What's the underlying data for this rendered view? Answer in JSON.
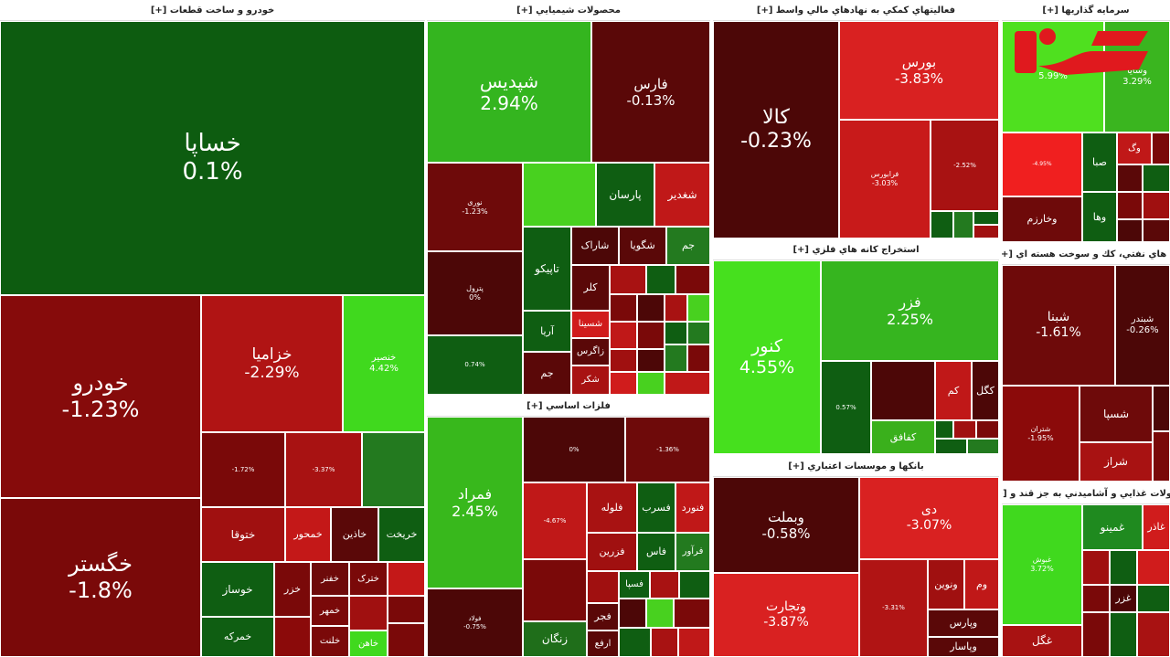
{
  "sectors": [
    {
      "title": "خودرو و ساخت قطعات [+]",
      "tiles": [
        {
          "label": "خساپا",
          "change": "0.1%",
          "color": "#0d5c10"
        },
        {
          "label": "خودرو",
          "change": "-1.23%",
          "color": "#860b0b"
        },
        {
          "label": "خگستر",
          "change": "-1.8%",
          "color": "#7a0909"
        },
        {
          "label": "خزامیا",
          "change": "-2.29%",
          "color": "#b01414"
        },
        {
          "label": "خنصیر",
          "change": "4.42%",
          "color": "#40d91e"
        },
        {
          "change": "-1.72%",
          "color": "#7a0909"
        },
        {
          "change": "-3.37%",
          "color": "#a81212"
        },
        {
          "label": "ختوقا",
          "color": "#a01010"
        },
        {
          "label": "خمحور",
          "color": "#c41818"
        },
        {
          "label": "خاذین",
          "color": "#5a0808"
        },
        {
          "label": "خریخت",
          "color": "#0f5e12"
        },
        {
          "label": "خوساز",
          "color": "#0f5e12"
        },
        {
          "label": "خزر",
          "color": "#7a0909"
        },
        {
          "label": "خفنر",
          "color": "#6e0a0a"
        },
        {
          "label": "خترک",
          "color": "#7a0909"
        },
        {
          "label": "خمهر",
          "color": "#7a0909"
        },
        {
          "label": "خمرکه",
          "color": "#0f5e12"
        },
        {
          "label": "خلنت",
          "color": "#7a0909"
        },
        {
          "label": "خاهن",
          "color": "#40d91e"
        }
      ]
    },
    {
      "title": "محصولات شيميايي [+]",
      "tiles": [
        {
          "label": "شپدیس",
          "change": "2.94%",
          "color": "#34b51f"
        },
        {
          "label": "فارس",
          "change": "-0.13%",
          "color": "#5a0808"
        },
        {
          "label": "نوری",
          "change": "-1.23%",
          "color": "#6e0a0a"
        },
        {
          "label": "پترول",
          "change": "0%",
          "color": "#4c0707"
        },
        {
          "change": "0.74%",
          "color": "#0f5e12"
        },
        {
          "label": "پارسان",
          "color": "#0f5e12"
        },
        {
          "label": "شغدیر",
          "color": "#c01818"
        },
        {
          "label": "تاپیکو",
          "color": "#0f5e12"
        },
        {
          "label": "شاراک",
          "color": "#4c0707"
        },
        {
          "label": "شگویا",
          "color": "#5a0808"
        },
        {
          "label": "جم",
          "color": "#237a1f"
        },
        {
          "label": "کلر",
          "color": "#5a0808"
        },
        {
          "label": "آریا",
          "color": "#0f5e12"
        },
        {
          "label": "جم",
          "color": "#5a0808"
        },
        {
          "label": "شسینا",
          "color": "#d01c1c"
        },
        {
          "label": "زاگرس",
          "color": "#5a0808"
        },
        {
          "label": "شکر",
          "color": "#a81212"
        }
      ]
    },
    {
      "title": "فلزات اساسي [+]",
      "tiles": [
        {
          "label": "فمراد",
          "change": "2.45%",
          "color": "#38b81c"
        },
        {
          "label": "فولاد",
          "change": "-0.75%",
          "color": "#4c0707"
        },
        {
          "change": "0%",
          "color": "#4c0707"
        },
        {
          "change": "-1.36%",
          "color": "#6e0a0a"
        },
        {
          "change": "-4.67%",
          "color": "#c01818"
        },
        {
          "label": "فلوله",
          "color": "#a81212"
        },
        {
          "label": "فسرب",
          "color": "#0f5e12"
        },
        {
          "label": "فنورد",
          "color": "#c01818"
        },
        {
          "label": "فزرین",
          "color": "#a01010"
        },
        {
          "label": "فاس",
          "color": "#0f5e12"
        },
        {
          "label": "فرآور",
          "color": "#237a1f"
        },
        {
          "label": "زنگان",
          "color": "#1f6e1a"
        },
        {
          "label": "فسپا",
          "color": "#0f5e12"
        },
        {
          "label": "فجر",
          "color": "#5a0808"
        },
        {
          "label": "ارفع",
          "color": "#5a0808"
        }
      ]
    },
    {
      "title": "فعاليتهاي كمكي به نهادهاي مالي واسط [+]",
      "tiles": [
        {
          "label": "کالا",
          "change": "-0.23%",
          "color": "#4c0707"
        },
        {
          "label": "بورس",
          "change": "-3.83%",
          "color": "#d92121"
        },
        {
          "label": "فرابورس",
          "change": "-3.03%",
          "color": "#c81a1a"
        },
        {
          "change": "-2.52%",
          "color": "#a81212"
        }
      ]
    },
    {
      "title": "استخراج كانه هاي فلزي [+]",
      "tiles": [
        {
          "label": "کنور",
          "change": "4.55%",
          "color": "#46e01e"
        },
        {
          "label": "فزر",
          "change": "2.25%",
          "color": "#36b51f"
        },
        {
          "change": "0.57%",
          "color": "#0f5e12"
        },
        {
          "label": "کم",
          "color": "#c01818"
        },
        {
          "label": "کگل",
          "color": "#4c0707"
        },
        {
          "label": "کفافق",
          "color": "#3ab01c"
        }
      ]
    },
    {
      "title": "بانكها و موسسات اعتباري [+]",
      "tiles": [
        {
          "label": "وبملت",
          "change": "-0.58%",
          "color": "#4c0707"
        },
        {
          "label": "دی",
          "change": "-3.07%",
          "color": "#d92121"
        },
        {
          "label": "وتجارت",
          "change": "-3.87%",
          "color": "#d92121"
        },
        {
          "change": "-3.31%",
          "color": "#b01414"
        },
        {
          "label": "ونوین",
          "color": "#a01010"
        },
        {
          "label": "وم",
          "color": "#c01818"
        },
        {
          "label": "وپارس",
          "color": "#5a0808"
        },
        {
          "label": "وپاسار",
          "color": "#5a0808"
        }
      ]
    },
    {
      "title": "سرمايه گذاريها [+]",
      "tiles": [
        {
          "change": "5.99%",
          "color": "#4fe01f"
        },
        {
          "label": "وسايا",
          "change": "3.29%",
          "color": "#3ab51f"
        },
        {
          "change": "-4.95%",
          "color": "#f01f1f"
        },
        {
          "label": "صبا",
          "color": "#0f5e12"
        },
        {
          "label": "وگ",
          "color": "#c01818"
        },
        {
          "label": "وخارزم",
          "color": "#6e0a0a"
        },
        {
          "label": "وها",
          "color": "#0f5e12"
        }
      ]
    },
    {
      "title": "ه هاي نفتي، كك و سوخت هسته اي [+]",
      "tiles": [
        {
          "label": "شبنا",
          "change": "-1.61%",
          "color": "#6e0a0a"
        },
        {
          "label": "شبندر",
          "change": "-0.26%",
          "color": "#4c0707"
        },
        {
          "label": "شتران",
          "change": "-1.95%",
          "color": "#8b0a0a"
        },
        {
          "label": "شسپا",
          "color": "#6e0a0a"
        },
        {
          "label": "شراز",
          "color": "#a81212"
        }
      ]
    },
    {
      "title": "صولات غذايي و آشاميدني به جز قند و [+]",
      "tiles": [
        {
          "label": "غبوش",
          "change": "3.72%",
          "color": "#40d91e"
        },
        {
          "label": "غمینو",
          "color": "#1f8a1f"
        },
        {
          "label": "غاذر",
          "color": "#d01c1c"
        },
        {
          "label": "غگل",
          "color": "#a81212"
        },
        {
          "label": "غزر",
          "color": "#4c0707"
        }
      ]
    }
  ]
}
